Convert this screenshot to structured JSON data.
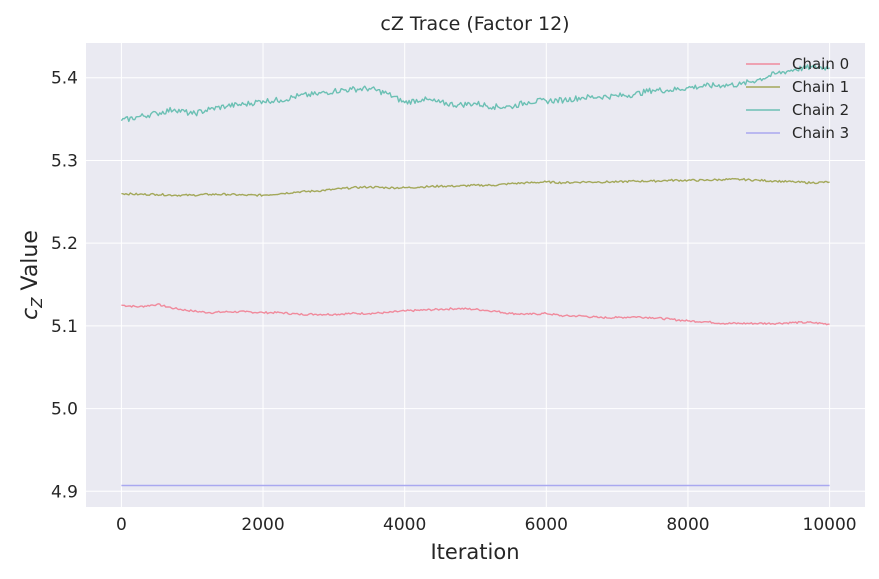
{
  "chart_data": {
    "type": "line",
    "title": "cZ Trace (Factor 12)",
    "xlabel": "Iteration",
    "ylabel_main": "c",
    "ylabel_sub": "Z",
    "ylabel_rest": " Value",
    "xlim": [
      -500,
      10500
    ],
    "ylim": [
      4.881,
      5.442
    ],
    "xticks": [
      0,
      2000,
      4000,
      6000,
      8000,
      10000
    ],
    "yticks": [
      4.9,
      5.0,
      5.1,
      5.2,
      5.3,
      5.4
    ],
    "ytick_labels": [
      "4.9",
      "5.0",
      "5.1",
      "5.2",
      "5.3",
      "5.4"
    ],
    "grid": true,
    "legend_position": "top-right",
    "x": [
      0,
      250,
      500,
      750,
      1000,
      1250,
      1500,
      1750,
      2000,
      2250,
      2500,
      2750,
      3000,
      3250,
      3500,
      3750,
      4000,
      4250,
      4500,
      4750,
      5000,
      5250,
      5500,
      5750,
      6000,
      6250,
      6500,
      6750,
      7000,
      7250,
      7500,
      7750,
      8000,
      8250,
      8500,
      8750,
      9000,
      9250,
      9500,
      9750,
      10000
    ],
    "series": [
      {
        "name": "Chain 0",
        "color": "#f08a9c",
        "values": [
          5.125,
          5.123,
          5.126,
          5.121,
          5.118,
          5.116,
          5.117,
          5.117,
          5.116,
          5.116,
          5.114,
          5.114,
          5.114,
          5.115,
          5.115,
          5.116,
          5.118,
          5.119,
          5.12,
          5.121,
          5.12,
          5.118,
          5.115,
          5.114,
          5.115,
          5.112,
          5.112,
          5.11,
          5.11,
          5.111,
          5.11,
          5.108,
          5.106,
          5.105,
          5.103,
          5.103,
          5.103,
          5.103,
          5.104,
          5.104,
          5.102
        ]
      },
      {
        "name": "Chain 1",
        "color": "#a3a85a",
        "values": [
          5.26,
          5.259,
          5.259,
          5.258,
          5.258,
          5.259,
          5.259,
          5.258,
          5.258,
          5.26,
          5.262,
          5.263,
          5.265,
          5.267,
          5.268,
          5.267,
          5.267,
          5.268,
          5.269,
          5.269,
          5.27,
          5.27,
          5.272,
          5.273,
          5.274,
          5.273,
          5.274,
          5.274,
          5.274,
          5.275,
          5.275,
          5.276,
          5.276,
          5.276,
          5.277,
          5.277,
          5.276,
          5.275,
          5.274,
          5.273,
          5.274
        ]
      },
      {
        "name": "Chain 2",
        "color": "#6cc0b4",
        "values": [
          5.348,
          5.353,
          5.357,
          5.362,
          5.356,
          5.362,
          5.366,
          5.368,
          5.372,
          5.373,
          5.378,
          5.38,
          5.384,
          5.386,
          5.387,
          5.381,
          5.37,
          5.374,
          5.37,
          5.367,
          5.369,
          5.365,
          5.365,
          5.371,
          5.372,
          5.373,
          5.376,
          5.377,
          5.378,
          5.38,
          5.385,
          5.385,
          5.388,
          5.39,
          5.391,
          5.392,
          5.398,
          5.405,
          5.41,
          5.413,
          5.412
        ]
      },
      {
        "name": "Chain 3",
        "color": "#a9a8f0",
        "values": [
          4.907,
          4.907,
          4.907,
          4.907,
          4.907,
          4.907,
          4.907,
          4.907,
          4.907,
          4.907,
          4.907,
          4.907,
          4.907,
          4.907,
          4.907,
          4.907,
          4.907,
          4.907,
          4.907,
          4.907,
          4.907,
          4.907,
          4.907,
          4.907,
          4.907,
          4.907,
          4.907,
          4.907,
          4.907,
          4.907,
          4.907,
          4.907,
          4.907,
          4.907,
          4.907,
          4.907,
          4.907,
          4.907,
          4.907,
          4.907,
          4.907
        ]
      }
    ]
  }
}
